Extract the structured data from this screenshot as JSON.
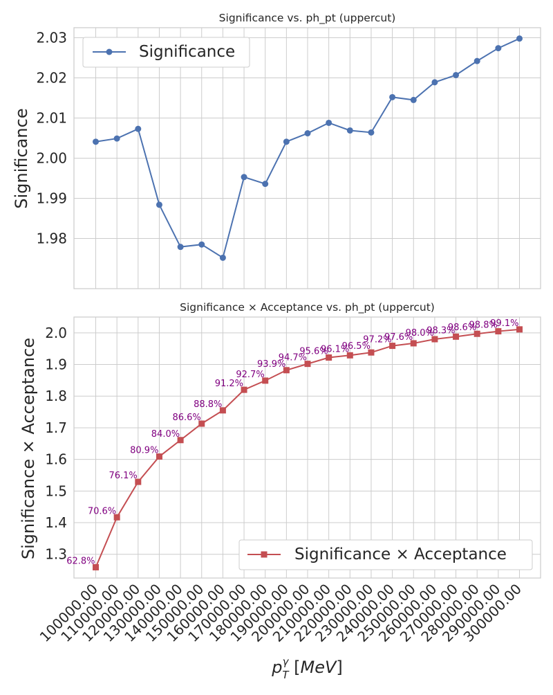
{
  "chart_data": [
    {
      "type": "line",
      "title": "Significance vs. ph_pt (uppercut)",
      "xlabel": "",
      "ylabel": "Significance",
      "x": [
        "100000.00",
        "110000.00",
        "120000.00",
        "130000.00",
        "140000.00",
        "150000.00",
        "160000.00",
        "170000.00",
        "180000.00",
        "190000.00",
        "200000.00",
        "210000.00",
        "220000.00",
        "230000.00",
        "240000.00",
        "250000.00",
        "260000.00",
        "270000.00",
        "280000.00",
        "290000.00",
        "300000.00"
      ],
      "series": [
        {
          "name": "Significance",
          "color": "#4c72b0",
          "marker": "circle",
          "values": [
            2.0041,
            2.0049,
            2.0073,
            1.9884,
            1.9779,
            1.9785,
            1.9752,
            1.9953,
            1.9936,
            2.0041,
            2.0062,
            2.0088,
            2.0069,
            2.0064,
            2.0152,
            2.0145,
            2.0189,
            2.0207,
            2.0242,
            2.0274,
            2.0298
          ]
        }
      ],
      "ylim": [
        1.9675,
        2.0325
      ],
      "yticks": [
        "1.98",
        "1.99",
        "2.00",
        "2.01",
        "2.02",
        "2.03"
      ],
      "ytick_values": [
        1.98,
        1.99,
        2.0,
        2.01,
        2.02,
        2.03
      ],
      "grid": true,
      "legend": "upper-left"
    },
    {
      "type": "line",
      "title": "Significance × Acceptance vs. ph_pt (uppercut)",
      "xlabel": "p_T^γ [MeV]",
      "ylabel": "Significance × Acceptance",
      "x": [
        "100000.00",
        "110000.00",
        "120000.00",
        "130000.00",
        "140000.00",
        "150000.00",
        "160000.00",
        "170000.00",
        "180000.00",
        "190000.00",
        "200000.00",
        "210000.00",
        "220000.00",
        "230000.00",
        "240000.00",
        "250000.00",
        "260000.00",
        "270000.00",
        "280000.00",
        "290000.00",
        "300000.00"
      ],
      "series": [
        {
          "name": "Significance × Acceptance",
          "color": "#c44e52",
          "marker": "square",
          "values": [
            1.259,
            1.417,
            1.529,
            1.609,
            1.661,
            1.713,
            1.755,
            1.82,
            1.849,
            1.882,
            1.902,
            1.922,
            1.929,
            1.938,
            1.959,
            1.967,
            1.98,
            1.988,
            1.997,
            2.005,
            2.011
          ]
        }
      ],
      "annotations": [
        "62.8%",
        "70.6%",
        "76.1%",
        "80.9%",
        "84.0%",
        "86.6%",
        "88.8%",
        "91.2%",
        "92.7%",
        "93.9%",
        "94.7%",
        "95.6%",
        "96.1%",
        "96.5%",
        "97.2%",
        "97.6%",
        "98.0%",
        "98.3%",
        "98.6%",
        "98.8%",
        "99.1%"
      ],
      "annotation_color": "#800080",
      "ylim": [
        1.225,
        2.05
      ],
      "yticks": [
        "1.3",
        "1.4",
        "1.5",
        "1.6",
        "1.7",
        "1.8",
        "1.9",
        "2.0"
      ],
      "ytick_values": [
        1.3,
        1.4,
        1.5,
        1.6,
        1.7,
        1.8,
        1.9,
        2.0
      ],
      "grid": true,
      "legend": "lower-right"
    }
  ]
}
